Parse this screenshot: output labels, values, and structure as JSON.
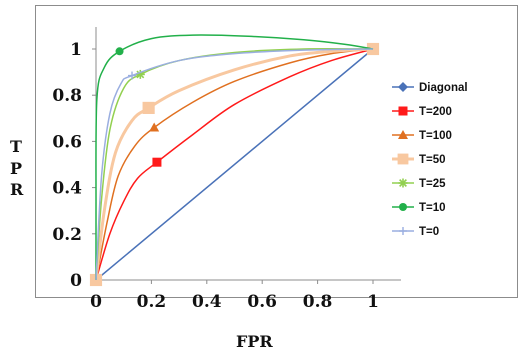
{
  "chart_data": {
    "type": "line",
    "title": "",
    "xlabel": "FPR",
    "ylabel": "TPR",
    "xlim": [
      0,
      1
    ],
    "ylim": [
      0,
      1
    ],
    "xticks": [
      0,
      0.2,
      0.4,
      0.6,
      0.8,
      1
    ],
    "xtick_labels": [
      "0",
      "0.2",
      "0.4",
      "0.6",
      "0.8",
      "1"
    ],
    "yticks": [
      0,
      0.2,
      0.4,
      0.6,
      0.8,
      1
    ],
    "ytick_labels": [
      "0",
      "0.2",
      "0.4",
      "0.6",
      "0.8",
      "1"
    ],
    "grid": false,
    "legend_position": "right",
    "series": [
      {
        "name": "Diagonal",
        "color": "#4a72b8",
        "marker": "diamond",
        "points": [
          [
            0,
            0
          ],
          [
            1,
            1
          ]
        ],
        "markers": [
          [
            0,
            0
          ],
          [
            1,
            1
          ]
        ]
      },
      {
        "name": "T=200",
        "color": "#ff1a1a",
        "marker": "square",
        "points": [
          [
            0,
            0
          ],
          [
            0.05,
            0.2
          ],
          [
            0.1,
            0.34
          ],
          [
            0.15,
            0.44
          ],
          [
            0.22,
            0.51
          ],
          [
            0.35,
            0.63
          ],
          [
            0.5,
            0.76
          ],
          [
            0.7,
            0.88
          ],
          [
            0.85,
            0.95
          ],
          [
            1,
            1
          ]
        ],
        "markers": [
          [
            0.22,
            0.51
          ]
        ]
      },
      {
        "name": "T=100",
        "color": "#e07020",
        "marker": "triangle",
        "points": [
          [
            0,
            0
          ],
          [
            0.04,
            0.25
          ],
          [
            0.08,
            0.45
          ],
          [
            0.14,
            0.58
          ],
          [
            0.21,
            0.66
          ],
          [
            0.35,
            0.77
          ],
          [
            0.5,
            0.86
          ],
          [
            0.7,
            0.94
          ],
          [
            0.85,
            0.98
          ],
          [
            1,
            1
          ]
        ],
        "markers": [
          [
            0.21,
            0.66
          ]
        ]
      },
      {
        "name": "T=50",
        "color": "#f8c8a0",
        "marker": "square",
        "points": [
          [
            0,
            0
          ],
          [
            0.03,
            0.3
          ],
          [
            0.07,
            0.55
          ],
          [
            0.13,
            0.69
          ],
          [
            0.19,
            0.745
          ],
          [
            0.3,
            0.82
          ],
          [
            0.5,
            0.91
          ],
          [
            0.7,
            0.97
          ],
          [
            0.85,
            0.99
          ],
          [
            1,
            1
          ]
        ],
        "markers": [
          [
            0,
            0
          ],
          [
            0.19,
            0.745
          ],
          [
            1,
            1
          ]
        ]
      },
      {
        "name": "T=25",
        "color": "#92d050",
        "marker": "star",
        "points": [
          [
            0,
            0
          ],
          [
            0.02,
            0.35
          ],
          [
            0.05,
            0.65
          ],
          [
            0.1,
            0.83
          ],
          [
            0.16,
            0.89
          ],
          [
            0.3,
            0.95
          ],
          [
            0.5,
            0.985
          ],
          [
            0.75,
            1.0
          ],
          [
            1,
            1
          ]
        ],
        "markers": [
          [
            0.16,
            0.89
          ]
        ]
      },
      {
        "name": "T=10",
        "color": "#22b04a",
        "marker": "circle",
        "points": [
          [
            0,
            0
          ],
          [
            0,
            0.3
          ],
          [
            0.003,
            0.78
          ],
          [
            0.03,
            0.92
          ],
          [
            0.085,
            0.99
          ],
          [
            0.2,
            1.045
          ],
          [
            0.35,
            1.06
          ],
          [
            0.55,
            1.055
          ],
          [
            0.75,
            1.04
          ],
          [
            0.9,
            1.02
          ],
          [
            1,
            1
          ]
        ],
        "markers": [
          [
            0.085,
            0.99
          ]
        ]
      },
      {
        "name": "T=0",
        "color": "#9aaee0",
        "marker": "plus",
        "points": [
          [
            0,
            0
          ],
          [
            0.02,
            0.45
          ],
          [
            0.05,
            0.72
          ],
          [
            0.09,
            0.85
          ],
          [
            0.13,
            0.885
          ],
          [
            0.3,
            0.95
          ],
          [
            0.5,
            0.98
          ],
          [
            0.75,
            0.995
          ],
          [
            1,
            1
          ]
        ],
        "markers": [
          [
            0.13,
            0.885
          ]
        ]
      }
    ]
  }
}
